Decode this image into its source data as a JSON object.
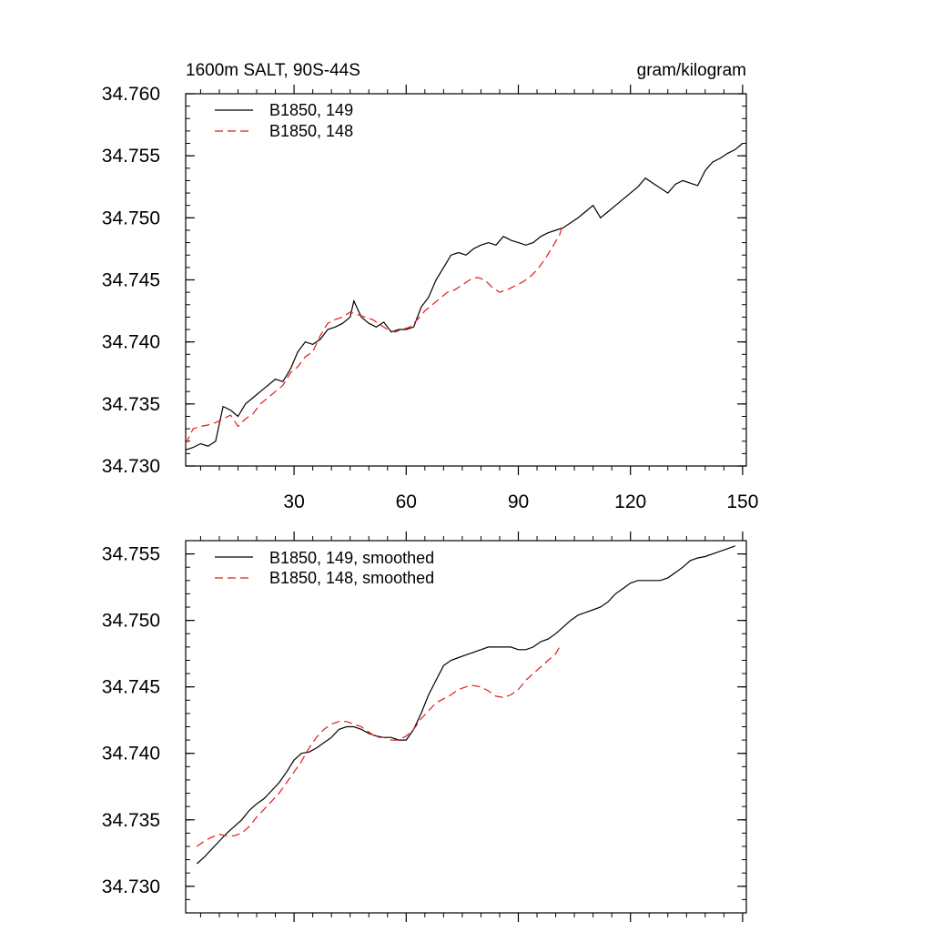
{
  "chart_data": [
    {
      "type": "line",
      "title_left": "1600m SALT, 90S-44S",
      "title_right": "gram/kilogram",
      "xlim": [
        1,
        151
      ],
      "ylim": [
        34.73,
        34.76
      ],
      "xticks": [
        30,
        60,
        90,
        120,
        150
      ],
      "xtick_labels": [
        "30",
        "60",
        "90",
        "120",
        "150"
      ],
      "yticks": [
        34.73,
        34.735,
        34.74,
        34.745,
        34.75,
        34.755,
        34.76
      ],
      "ytick_labels": [
        "34.730",
        "34.735",
        "34.740",
        "34.745",
        "34.750",
        "34.755",
        "34.760"
      ],
      "grid": false,
      "legend_position": "top-left",
      "series": [
        {
          "name": "B1850, 149",
          "color": "#000000",
          "dash": "solid",
          "points": [
            [
              1,
              34.7313
            ],
            [
              3,
              34.7315
            ],
            [
              5,
              34.7318
            ],
            [
              7,
              34.7316
            ],
            [
              9,
              34.732
            ],
            [
              11,
              34.7348
            ],
            [
              13,
              34.7345
            ],
            [
              15,
              34.734
            ],
            [
              17,
              34.735
            ],
            [
              19,
              34.7355
            ],
            [
              21,
              34.736
            ],
            [
              23,
              34.7365
            ],
            [
              25,
              34.737
            ],
            [
              27,
              34.7368
            ],
            [
              29,
              34.7378
            ],
            [
              31,
              34.7392
            ],
            [
              33,
              34.74
            ],
            [
              35,
              34.7398
            ],
            [
              37,
              34.7402
            ],
            [
              39,
              34.741
            ],
            [
              41,
              34.7412
            ],
            [
              43,
              34.7415
            ],
            [
              45,
              34.742
            ],
            [
              46,
              34.7433
            ],
            [
              48,
              34.742
            ],
            [
              50,
              34.7415
            ],
            [
              52,
              34.7412
            ],
            [
              54,
              34.7416
            ],
            [
              56,
              34.7408
            ],
            [
              58,
              34.741
            ],
            [
              60,
              34.741
            ],
            [
              62,
              34.7412
            ],
            [
              64,
              34.7428
            ],
            [
              66,
              34.7436
            ],
            [
              68,
              34.745
            ],
            [
              70,
              34.746
            ],
            [
              72,
              34.747
            ],
            [
              74,
              34.7472
            ],
            [
              76,
              34.747
            ],
            [
              78,
              34.7475
            ],
            [
              80,
              34.7478
            ],
            [
              82,
              34.748
            ],
            [
              84,
              34.7478
            ],
            [
              86,
              34.7485
            ],
            [
              88,
              34.7482
            ],
            [
              90,
              34.748
            ],
            [
              92,
              34.7478
            ],
            [
              94,
              34.748
            ],
            [
              96,
              34.7485
            ],
            [
              98,
              34.7488
            ],
            [
              100,
              34.749
            ],
            [
              102,
              34.7492
            ],
            [
              104,
              34.7496
            ],
            [
              106,
              34.75
            ],
            [
              108,
              34.7505
            ],
            [
              110,
              34.751
            ],
            [
              112,
              34.75
            ],
            [
              114,
              34.7505
            ],
            [
              116,
              34.751
            ],
            [
              118,
              34.7515
            ],
            [
              120,
              34.752
            ],
            [
              122,
              34.7525
            ],
            [
              124,
              34.7532
            ],
            [
              126,
              34.7528
            ],
            [
              128,
              34.7524
            ],
            [
              130,
              34.752
            ],
            [
              132,
              34.7527
            ],
            [
              134,
              34.753
            ],
            [
              136,
              34.7528
            ],
            [
              138,
              34.7526
            ],
            [
              140,
              34.7538
            ],
            [
              142,
              34.7545
            ],
            [
              144,
              34.7548
            ],
            [
              146,
              34.7552
            ],
            [
              148,
              34.7555
            ],
            [
              150,
              34.756
            ]
          ]
        },
        {
          "name": "B1850, 148",
          "color": "#e31a1c",
          "dash": "dashed",
          "points": [
            [
              1,
              34.7318
            ],
            [
              3,
              34.733
            ],
            [
              5,
              34.7332
            ],
            [
              7,
              34.7333
            ],
            [
              9,
              34.7335
            ],
            [
              11,
              34.7338
            ],
            [
              13,
              34.7341
            ],
            [
              15,
              34.7332
            ],
            [
              17,
              34.7338
            ],
            [
              19,
              34.7342
            ],
            [
              21,
              34.735
            ],
            [
              23,
              34.7355
            ],
            [
              25,
              34.736
            ],
            [
              27,
              34.7365
            ],
            [
              29,
              34.7375
            ],
            [
              31,
              34.738
            ],
            [
              33,
              34.7388
            ],
            [
              35,
              34.7392
            ],
            [
              37,
              34.7405
            ],
            [
              39,
              34.7415
            ],
            [
              41,
              34.7418
            ],
            [
              43,
              34.742
            ],
            [
              45,
              34.7424
            ],
            [
              47,
              34.7422
            ],
            [
              49,
              34.742
            ],
            [
              51,
              34.7418
            ],
            [
              53,
              34.7414
            ],
            [
              55,
              34.741
            ],
            [
              57,
              34.7408
            ],
            [
              59,
              34.741
            ],
            [
              61,
              34.7412
            ],
            [
              63,
              34.7418
            ],
            [
              65,
              34.7425
            ],
            [
              67,
              34.743
            ],
            [
              69,
              34.7435
            ],
            [
              71,
              34.744
            ],
            [
              73,
              34.7442
            ],
            [
              75,
              34.7446
            ],
            [
              77,
              34.745
            ],
            [
              79,
              34.7452
            ],
            [
              81,
              34.745
            ],
            [
              83,
              34.7444
            ],
            [
              85,
              34.744
            ],
            [
              87,
              34.7442
            ],
            [
              89,
              34.7445
            ],
            [
              91,
              34.7448
            ],
            [
              93,
              34.7452
            ],
            [
              95,
              34.7458
            ],
            [
              97,
              34.7466
            ],
            [
              99,
              34.7476
            ],
            [
              101,
              34.7486
            ],
            [
              102,
              34.7495
            ]
          ]
        }
      ]
    },
    {
      "type": "line",
      "xlim": [
        1,
        151
      ],
      "ylim": [
        34.728,
        34.756
      ],
      "xticks": [
        30,
        60,
        90,
        120,
        150
      ],
      "xtick_labels": [],
      "yticks": [
        34.73,
        34.735,
        34.74,
        34.745,
        34.75,
        34.755
      ],
      "ytick_labels": [
        "34.730",
        "34.735",
        "34.740",
        "34.745",
        "34.750",
        "34.755"
      ],
      "grid": false,
      "legend_position": "top-left",
      "series": [
        {
          "name": "B1850, 149, smoothed",
          "color": "#000000",
          "dash": "solid",
          "points": [
            [
              4,
              34.7317
            ],
            [
              6,
              34.7322
            ],
            [
              8,
              34.7328
            ],
            [
              10,
              34.7334
            ],
            [
              12,
              34.734
            ],
            [
              14,
              34.7345
            ],
            [
              16,
              34.735
            ],
            [
              18,
              34.7357
            ],
            [
              20,
              34.7362
            ],
            [
              22,
              34.7366
            ],
            [
              24,
              34.7372
            ],
            [
              26,
              34.7378
            ],
            [
              28,
              34.7386
            ],
            [
              30,
              34.7395
            ],
            [
              32,
              34.74
            ],
            [
              34,
              34.7401
            ],
            [
              36,
              34.7404
            ],
            [
              38,
              34.7408
            ],
            [
              40,
              34.7412
            ],
            [
              42,
              34.7418
            ],
            [
              44,
              34.742
            ],
            [
              46,
              34.742
            ],
            [
              48,
              34.7418
            ],
            [
              50,
              34.7415
            ],
            [
              52,
              34.7413
            ],
            [
              54,
              34.7412
            ],
            [
              56,
              34.7412
            ],
            [
              58,
              34.741
            ],
            [
              60,
              34.741
            ],
            [
              62,
              34.7418
            ],
            [
              64,
              34.743
            ],
            [
              66,
              34.7444
            ],
            [
              68,
              34.7455
            ],
            [
              70,
              34.7466
            ],
            [
              72,
              34.747
            ],
            [
              74,
              34.7472
            ],
            [
              76,
              34.7474
            ],
            [
              78,
              34.7476
            ],
            [
              80,
              34.7478
            ],
            [
              82,
              34.748
            ],
            [
              84,
              34.748
            ],
            [
              86,
              34.748
            ],
            [
              88,
              34.748
            ],
            [
              90,
              34.7478
            ],
            [
              92,
              34.7478
            ],
            [
              94,
              34.748
            ],
            [
              96,
              34.7484
            ],
            [
              98,
              34.7486
            ],
            [
              100,
              34.749
            ],
            [
              102,
              34.7495
            ],
            [
              104,
              34.75
            ],
            [
              106,
              34.7504
            ],
            [
              108,
              34.7506
            ],
            [
              110,
              34.7508
            ],
            [
              112,
              34.751
            ],
            [
              114,
              34.7514
            ],
            [
              116,
              34.752
            ],
            [
              118,
              34.7524
            ],
            [
              120,
              34.7528
            ],
            [
              122,
              34.753
            ],
            [
              124,
              34.753
            ],
            [
              126,
              34.753
            ],
            [
              128,
              34.753
            ],
            [
              130,
              34.7532
            ],
            [
              132,
              34.7536
            ],
            [
              134,
              34.754
            ],
            [
              136,
              34.7545
            ],
            [
              138,
              34.7547
            ],
            [
              140,
              34.7548
            ],
            [
              142,
              34.755
            ],
            [
              144,
              34.7552
            ],
            [
              146,
              34.7554
            ],
            [
              148,
              34.7556
            ]
          ]
        },
        {
          "name": "B1850, 148, smoothed",
          "color": "#e31a1c",
          "dash": "dashed",
          "points": [
            [
              4,
              34.733
            ],
            [
              6,
              34.7334
            ],
            [
              8,
              34.7337
            ],
            [
              10,
              34.7339
            ],
            [
              12,
              34.7338
            ],
            [
              14,
              34.7338
            ],
            [
              16,
              34.734
            ],
            [
              18,
              34.7345
            ],
            [
              20,
              34.7352
            ],
            [
              22,
              34.7358
            ],
            [
              24,
              34.7364
            ],
            [
              26,
              34.737
            ],
            [
              28,
              34.7378
            ],
            [
              30,
              34.7386
            ],
            [
              32,
              34.7394
            ],
            [
              34,
              34.7404
            ],
            [
              36,
              34.7412
            ],
            [
              38,
              34.7418
            ],
            [
              40,
              34.7422
            ],
            [
              42,
              34.7424
            ],
            [
              44,
              34.7424
            ],
            [
              46,
              34.7422
            ],
            [
              48,
              34.742
            ],
            [
              50,
              34.7416
            ],
            [
              52,
              34.7412
            ],
            [
              54,
              34.7412
            ],
            [
              56,
              34.741
            ],
            [
              58,
              34.741
            ],
            [
              60,
              34.7413
            ],
            [
              62,
              34.7418
            ],
            [
              64,
              34.7426
            ],
            [
              66,
              34.7432
            ],
            [
              68,
              34.7438
            ],
            [
              70,
              34.7441
            ],
            [
              72,
              34.7444
            ],
            [
              74,
              34.7448
            ],
            [
              76,
              34.745
            ],
            [
              78,
              34.7451
            ],
            [
              80,
              34.745
            ],
            [
              82,
              34.7447
            ],
            [
              84,
              34.7443
            ],
            [
              86,
              34.7442
            ],
            [
              88,
              34.7444
            ],
            [
              90,
              34.7448
            ],
            [
              92,
              34.7455
            ],
            [
              94,
              34.746
            ],
            [
              96,
              34.7465
            ],
            [
              98,
              34.747
            ],
            [
              100,
              34.7475
            ],
            [
              101,
              34.748
            ]
          ]
        }
      ]
    }
  ]
}
